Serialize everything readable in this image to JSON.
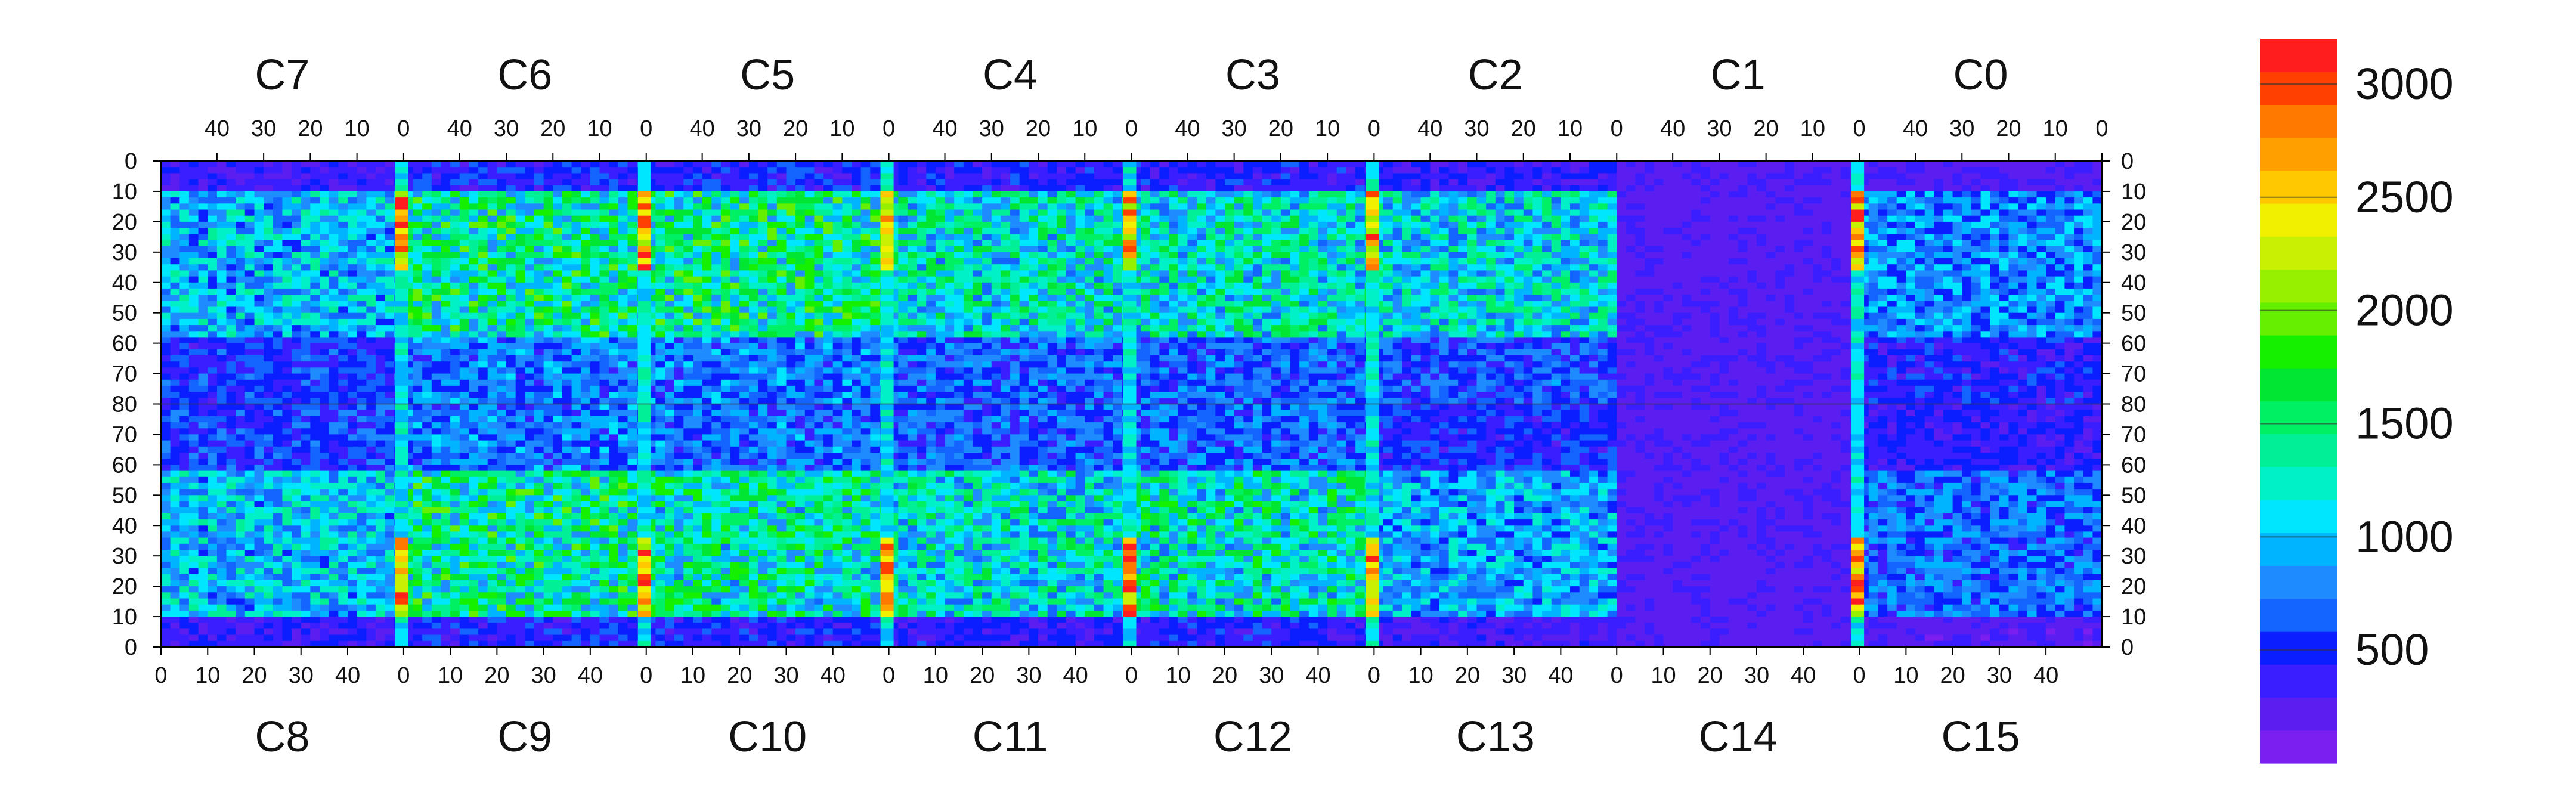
{
  "chart_data": {
    "type": "heatmap",
    "title": "",
    "xlabel": "",
    "ylabel": "",
    "top_row_chips": [
      "C7",
      "C6",
      "C5",
      "C4",
      "C3",
      "C2",
      "C1",
      "C0"
    ],
    "bottom_row_chips": [
      "C8",
      "C9",
      "C10",
      "C11",
      "C12",
      "C13",
      "C14",
      "C15"
    ],
    "top_x_ticks": [
      "40",
      "30",
      "20",
      "10",
      "0"
    ],
    "bottom_x_ticks": [
      "0",
      "10",
      "20",
      "30",
      "40"
    ],
    "top_x_range": [
      52,
      0
    ],
    "bottom_x_range": [
      0,
      52
    ],
    "y_ticks_left": [
      "0",
      "10",
      "20",
      "30",
      "40",
      "50",
      "60",
      "70",
      "80",
      "70",
      "60",
      "50",
      "40",
      "30",
      "20",
      "10",
      "0"
    ],
    "y_ticks_right": [
      "0",
      "10",
      "20",
      "30",
      "40",
      "50",
      "60",
      "70",
      "80",
      "70",
      "60",
      "50",
      "40",
      "30",
      "20",
      "10",
      "0"
    ],
    "y_range_per_half": [
      0,
      80
    ],
    "colorbar": {
      "min": 0,
      "max": 3200,
      "ticks": [
        "500",
        "1000",
        "1500",
        "2000",
        "2500",
        "3000"
      ],
      "tick_values": [
        500,
        1000,
        1500,
        2000,
        2500,
        3000
      ],
      "colors": [
        "#7a1ff0",
        "#5a1ef0",
        "#3a1eff",
        "#0a1eff",
        "#1464ff",
        "#1e8cff",
        "#00b4ff",
        "#00e6ff",
        "#00f0c8",
        "#00f096",
        "#00f064",
        "#00e632",
        "#14f000",
        "#64f000",
        "#96f000",
        "#c8f000",
        "#f0f000",
        "#ffc800",
        "#ffa000",
        "#ff7800",
        "#ff4000",
        "#ff1e1e"
      ]
    },
    "chip_mean_counts": {
      "C7": 950,
      "C6": 1350,
      "C5": 1350,
      "C4": 1200,
      "C3": 1200,
      "C2": 1100,
      "C1": 250,
      "C0": 800,
      "C8": 1000,
      "C9": 1350,
      "C10": 1300,
      "C11": 1150,
      "C12": 1250,
      "C13": 900,
      "C14": 250,
      "C15": 700
    },
    "hot_columns_counts": 3000
  }
}
